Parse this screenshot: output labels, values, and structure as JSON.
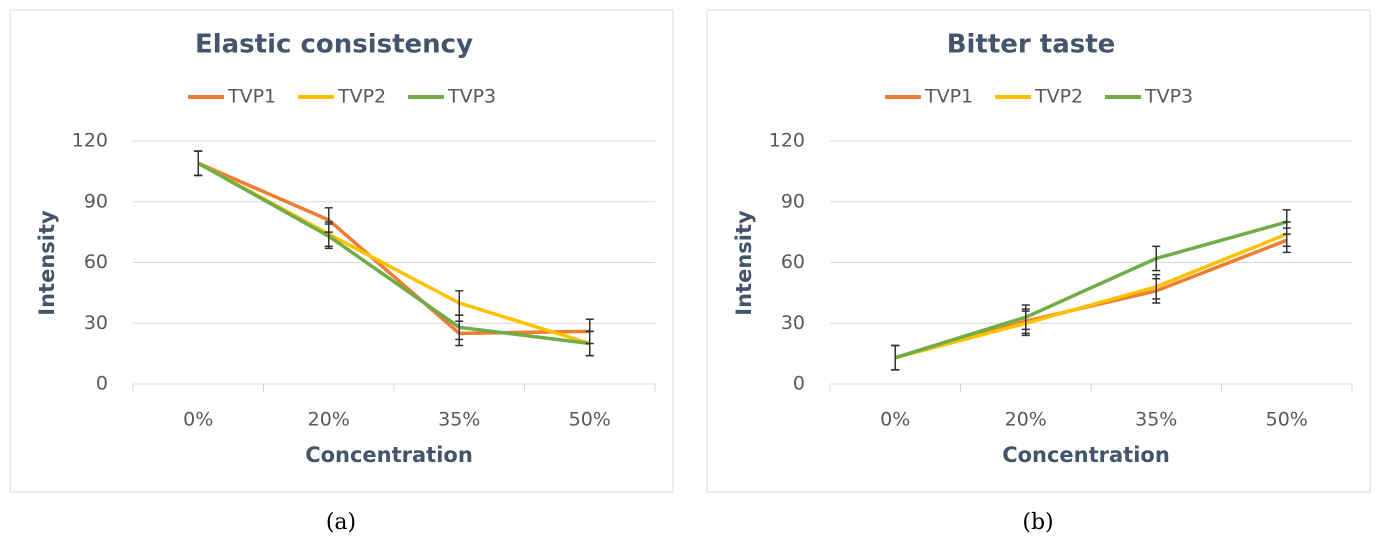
{
  "chart_data": [
    {
      "type": "line",
      "title": "Elastic consistency",
      "caption": "(a)",
      "x_label": "Concentration",
      "y_label": "Intensity",
      "categories": [
        "0%",
        "20%",
        "35%",
        "50%"
      ],
      "series": [
        {
          "name": "TVP1",
          "color": "#ed7d31",
          "values": [
            109,
            81,
            25,
            26
          ],
          "errors": [
            6,
            6,
            6,
            6
          ]
        },
        {
          "name": "TVP2",
          "color": "#ffc000",
          "values": [
            109,
            74,
            40,
            20
          ],
          "errors": [
            6,
            6,
            6,
            6
          ]
        },
        {
          "name": "TVP3",
          "color": "#70ad47",
          "values": [
            109,
            73,
            28,
            20
          ],
          "errors": [
            6,
            6,
            6,
            6
          ]
        }
      ],
      "ylim": [
        0,
        120
      ],
      "yticks": [
        0,
        30,
        60,
        90,
        120
      ],
      "grid": true,
      "legend": "top"
    },
    {
      "type": "line",
      "title": "Bitter taste",
      "caption": "(b)",
      "x_label": "Concentration",
      "y_label": "Intensity",
      "categories": [
        "0%",
        "20%",
        "35%",
        "50%"
      ],
      "series": [
        {
          "name": "TVP1",
          "color": "#ed7d31",
          "values": [
            13,
            31,
            46,
            71
          ],
          "errors": [
            6,
            6,
            6,
            6
          ]
        },
        {
          "name": "TVP2",
          "color": "#ffc000",
          "values": [
            13,
            30,
            48,
            74
          ],
          "errors": [
            6,
            6,
            6,
            6
          ]
        },
        {
          "name": "TVP3",
          "color": "#70ad47",
          "values": [
            13,
            33,
            62,
            80
          ],
          "errors": [
            6,
            6,
            6,
            6
          ]
        }
      ],
      "ylim": [
        0,
        120
      ],
      "yticks": [
        0,
        30,
        60,
        90,
        120
      ],
      "grid": true,
      "legend": "top"
    }
  ]
}
